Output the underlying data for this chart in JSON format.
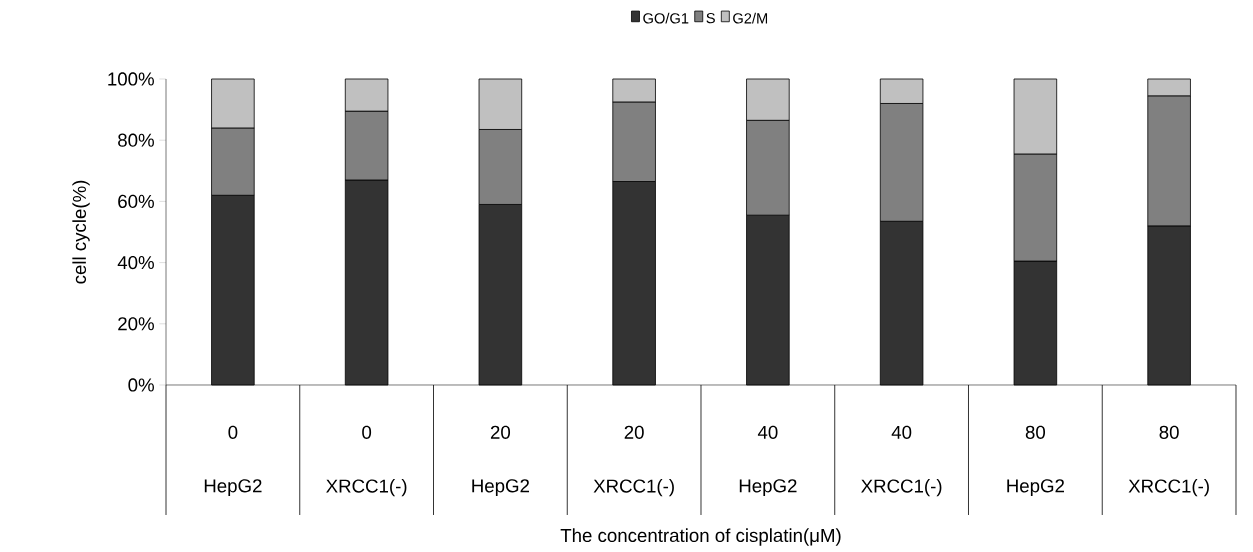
{
  "chart_data": {
    "type": "bar",
    "stacked": true,
    "xlabel": "The concentration of cisplatin(μM)",
    "ylabel": "cell cycle(%)",
    "categories": [
      "0",
      "0",
      "20",
      "20",
      "40",
      "40",
      "80",
      "80"
    ],
    "annotations": [
      "HepG2",
      "XRCC1(-)",
      "HepG2",
      "XRCC1(-)",
      "HepG2",
      "XRCC1(-)",
      "HepG2",
      "XRCC1(-)"
    ],
    "series": [
      {
        "name": "GO/G1",
        "color": "#333333",
        "values": [
          62,
          67,
          59,
          66.5,
          55.5,
          53.5,
          40.5,
          52
        ]
      },
      {
        "name": "S",
        "color": "#808080",
        "values": [
          22,
          22.5,
          24.5,
          26,
          31,
          38.5,
          35,
          42.5
        ]
      },
      {
        "name": "G2/M",
        "color": "#c0c0c0",
        "values": [
          16,
          10.5,
          16.5,
          7.5,
          13.5,
          8,
          24.5,
          5.5
        ]
      }
    ],
    "ylim": [
      0,
      100
    ],
    "yticks": [
      {
        "value": 0,
        "label": "0%"
      },
      {
        "value": 20,
        "label": "20%"
      },
      {
        "value": 40,
        "label": "40%"
      },
      {
        "value": 60,
        "label": "60%"
      },
      {
        "value": 80,
        "label": "80%"
      },
      {
        "value": 100,
        "label": "100%"
      }
    ],
    "grid": false,
    "legend": "top"
  }
}
